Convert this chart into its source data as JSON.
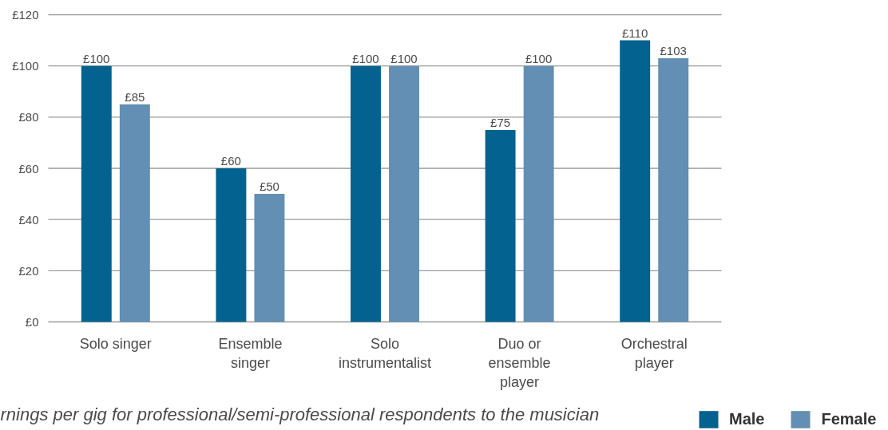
{
  "chart_data": {
    "type": "bar",
    "categories": [
      "Solo singer",
      "Ensemble\nsinger",
      "Solo\ninstrumentalist",
      "Duo or\nensemble\nplayer",
      "Orchestral\nplayer"
    ],
    "series": [
      {
        "name": "Male",
        "color": "#03628f",
        "values": [
          100,
          60,
          100,
          75,
          110
        ],
        "value_labels": [
          "£100",
          "£60",
          "£100",
          "£75",
          "£110"
        ]
      },
      {
        "name": "Female",
        "color": "#628fb3",
        "values": [
          85,
          50,
          100,
          100,
          103
        ],
        "value_labels": [
          "£85",
          "£50",
          "£100",
          "£100",
          "£103"
        ]
      }
    ],
    "ylim": [
      0,
      120
    ],
    "yticks": [
      {
        "value": 0,
        "label": "£0"
      },
      {
        "value": 20,
        "label": "£20"
      },
      {
        "value": 40,
        "label": "£40"
      },
      {
        "value": 60,
        "label": "£60"
      },
      {
        "value": 80,
        "label": "£80"
      },
      {
        "value": 100,
        "label": "£100"
      },
      {
        "value": 120,
        "label": "£120"
      }
    ],
    "grid": "y",
    "legend": "bottom right",
    "annotations": [
      "rnings per gig for professional/semi-professional respondents to the musician"
    ]
  }
}
